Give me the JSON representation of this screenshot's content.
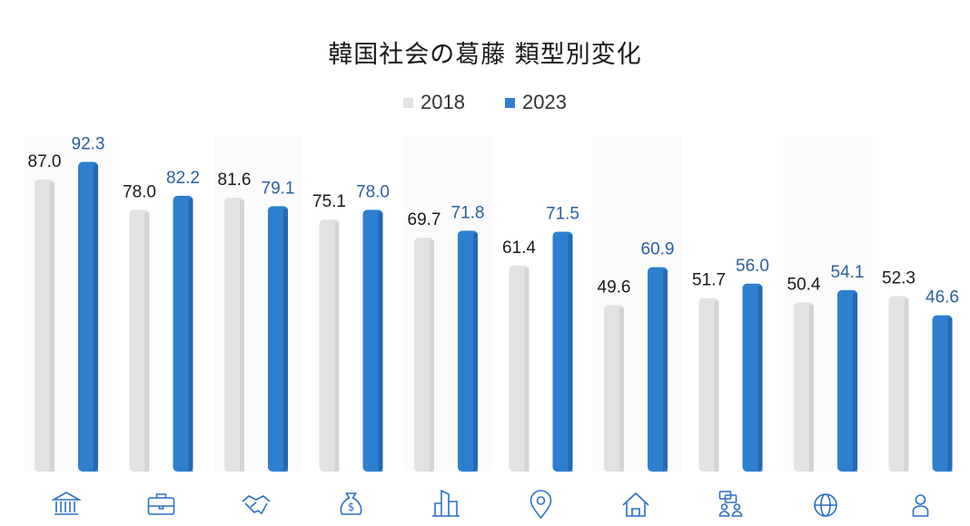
{
  "chart_data": {
    "type": "bar",
    "title": "韓国社会の葛藤 類型別変化",
    "categories": [
      "bank-icon",
      "briefcase-icon",
      "handshake-icon",
      "money-bag-icon",
      "buildings-icon",
      "location-pin-icon",
      "house-icon",
      "people-chat-icon",
      "globe-icon",
      "person-icon"
    ],
    "series": [
      {
        "name": "2018",
        "color": "#e2e2e2",
        "values": [
          87.0,
          78.0,
          81.6,
          75.1,
          69.7,
          61.4,
          49.6,
          51.7,
          50.4,
          52.3
        ]
      },
      {
        "name": "2023",
        "color": "#2f7fd0",
        "values": [
          92.3,
          82.2,
          79.1,
          78.0,
          71.8,
          71.5,
          60.9,
          56.0,
          54.1,
          46.6
        ]
      }
    ],
    "value_labels": {
      "2018": [
        "87.0",
        "78.0",
        "81.6",
        "75.1",
        "69.7",
        "61.4",
        "49.6",
        "51.7",
        "50.4",
        "52.3"
      ],
      "2023": [
        "92.3",
        "82.2",
        "79.1",
        "78.0",
        "71.8",
        "71.5",
        "60.9",
        "56.0",
        "54.1",
        "46.6"
      ]
    },
    "label_colors": {
      "2018": "#1a1a1a",
      "2023": "#2b5fa0"
    },
    "ylim": [
      0,
      100
    ],
    "grid": false,
    "legend_position": "top-center",
    "xlabel": "",
    "ylabel": ""
  }
}
